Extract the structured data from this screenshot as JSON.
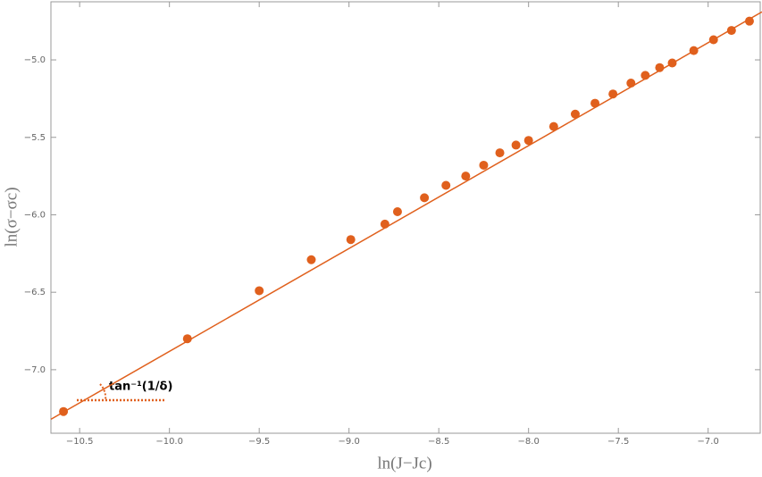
{
  "chart_data": {
    "type": "scatter",
    "xlabel": "ln(J−Jc)",
    "ylabel": "ln(σ−σc)",
    "annotation": "tan⁻¹(1/δ)",
    "xlim": [
      -10.66,
      -6.71
    ],
    "ylim": [
      -7.41,
      -4.625
    ],
    "xticks": [
      {
        "value": -10.5,
        "label": "−10.5"
      },
      {
        "value": -10,
        "label": "−10.0"
      },
      {
        "value": -9.5,
        "label": "−9.5"
      },
      {
        "value": -9,
        "label": "−9.0"
      },
      {
        "value": -8.5,
        "label": "−8.5"
      },
      {
        "value": -8,
        "label": "−8.0"
      },
      {
        "value": -7.5,
        "label": "−7.5"
      },
      {
        "value": -7,
        "label": "−7.0"
      }
    ],
    "yticks": [
      {
        "value": -7,
        "label": "−7.0"
      },
      {
        "value": -6.5,
        "label": "−6.5"
      },
      {
        "value": -6,
        "label": "−6.0"
      },
      {
        "value": -5.5,
        "label": "−5.5"
      },
      {
        "value": -5,
        "label": "−5.0"
      }
    ],
    "series": [
      {
        "mode": "markers",
        "color": "#e0601d",
        "x": [
          -10.59,
          -9.9,
          -9.5,
          -9.21,
          -8.99,
          -8.8,
          -8.73,
          -8.58,
          -8.46,
          -8.35,
          -8.25,
          -8.16,
          -8.07,
          -8.0,
          -7.86,
          -7.74,
          -7.63,
          -7.53,
          -7.43,
          -7.35,
          -7.27,
          -7.2,
          -7.08,
          -6.97,
          -6.87,
          -6.77
        ],
        "y": [
          -7.27,
          -6.8,
          -6.49,
          -6.29,
          -6.16,
          -6.06,
          -5.98,
          -5.89,
          -5.81,
          -5.75,
          -5.68,
          -5.6,
          -5.55,
          -5.52,
          -5.43,
          -5.35,
          -5.28,
          -5.22,
          -5.15,
          -5.1,
          -5.05,
          -5.02,
          -4.94,
          -4.87,
          -4.81,
          -4.75
        ]
      },
      {
        "mode": "line",
        "color": "#e0601d",
        "x": [
          -10.66,
          -6.7
        ],
        "y": [
          -7.32,
          -4.69
        ]
      }
    ]
  }
}
